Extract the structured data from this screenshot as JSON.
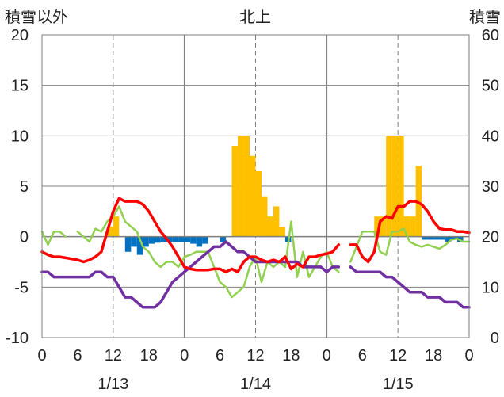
{
  "chart_data": {
    "type": "bar+line",
    "title": "北上",
    "ylabel_left": "積雪以外",
    "ylabel_right": "積雪",
    "ylim_left": [
      -10,
      20
    ],
    "yticks_left": [
      "20",
      "15",
      "10",
      "5",
      "0",
      "-5",
      "-10"
    ],
    "ylim_right": [
      0,
      60
    ],
    "yticks_right": [
      "60",
      "50",
      "40",
      "30",
      "20",
      "10",
      "0"
    ],
    "xlim_hours": [
      0,
      72
    ],
    "xticks": [
      "0",
      "6",
      "12",
      "18",
      "0",
      "6",
      "12",
      "18",
      "0",
      "6",
      "12",
      "18",
      "0"
    ],
    "date_labels": [
      "1/13",
      "1/14",
      "1/15"
    ],
    "grid": true,
    "colors": {
      "snow_depth": "#FFC000",
      "snow_change": "#0070C0",
      "red_line": "#FF0000",
      "green_line": "#92D050",
      "purple_line": "#7030A0",
      "grid": "#808080"
    },
    "series": [
      {
        "key": "snow_depth_bars",
        "axis": "right",
        "color": "#FFC000",
        "points": [
          [
            12,
            22
          ],
          [
            13,
            24
          ],
          [
            33,
            38
          ],
          [
            34,
            40
          ],
          [
            35,
            40
          ],
          [
            36,
            36
          ],
          [
            37,
            33
          ],
          [
            38,
            28
          ],
          [
            39,
            24
          ],
          [
            40,
            26
          ],
          [
            41,
            22
          ],
          [
            57,
            24
          ],
          [
            58,
            24
          ],
          [
            59,
            40
          ],
          [
            60,
            40
          ],
          [
            61,
            40
          ],
          [
            62,
            24
          ],
          [
            63,
            24
          ],
          [
            64,
            34
          ]
        ]
      },
      {
        "key": "snow_change_bars",
        "axis": "left",
        "color": "#0070C0",
        "points": [
          [
            15,
            -1.5
          ],
          [
            16,
            -1
          ],
          [
            17,
            -1.8
          ],
          [
            18,
            -1
          ],
          [
            19,
            -0.7
          ],
          [
            20,
            -0.6
          ],
          [
            21,
            -0.5
          ],
          [
            22,
            -0.5
          ],
          [
            23,
            -0.5
          ],
          [
            24,
            -0.5
          ],
          [
            25,
            -0.5
          ],
          [
            26,
            -0.7
          ],
          [
            27,
            -1
          ],
          [
            28,
            -0.7
          ],
          [
            31,
            -0.5
          ],
          [
            42,
            -0.5
          ],
          [
            65,
            -0.3
          ],
          [
            66,
            -0.3
          ],
          [
            67,
            -0.3
          ],
          [
            68,
            -0.3
          ],
          [
            69,
            -0.5
          ],
          [
            70,
            -0.3
          ],
          [
            71,
            -0.5
          ]
        ]
      },
      {
        "key": "red_line",
        "axis": "left",
        "color": "#FF0000",
        "segments": [
          [
            [
              0,
              -1.5
            ],
            [
              1,
              -1.8
            ],
            [
              2,
              -2
            ],
            [
              3,
              -2
            ],
            [
              4,
              -2.1
            ],
            [
              5,
              -2.2
            ],
            [
              6,
              -2.3
            ],
            [
              7,
              -2.5
            ],
            [
              8,
              -2.3
            ],
            [
              9,
              -2
            ],
            [
              10,
              -1.5
            ],
            [
              11,
              0.5
            ],
            [
              12,
              2.5
            ],
            [
              13,
              3.8
            ],
            [
              14,
              3.5
            ],
            [
              15,
              3.5
            ],
            [
              16,
              3.5
            ],
            [
              17,
              3.2
            ],
            [
              18,
              2.5
            ],
            [
              19,
              1.5
            ],
            [
              20,
              0.5
            ],
            [
              21,
              -0.2
            ],
            [
              22,
              -1
            ],
            [
              23,
              -2
            ],
            [
              24,
              -3
            ],
            [
              25,
              -3.2
            ],
            [
              26,
              -3.3
            ],
            [
              27,
              -3.3
            ],
            [
              28,
              -3.3
            ],
            [
              29,
              -3.2
            ],
            [
              30,
              -3.2
            ],
            [
              31,
              -3.5
            ],
            [
              32,
              -3.2
            ],
            [
              33,
              -3.5
            ],
            [
              34,
              -2.5
            ],
            [
              35,
              -2
            ],
            [
              36,
              -2
            ],
            [
              37,
              -2.3
            ],
            [
              38,
              -2.5
            ],
            [
              39,
              -2.3
            ],
            [
              40,
              -2.5
            ],
            [
              41,
              -2
            ],
            [
              42,
              -3.2
            ],
            [
              43,
              -2.7
            ],
            [
              44,
              -3
            ],
            [
              45,
              -2
            ],
            [
              46,
              -2
            ],
            [
              47,
              -1.8
            ],
            [
              48,
              -1.7
            ],
            [
              49,
              -1.5
            ],
            [
              50,
              -0.8
            ]
          ],
          [
            [
              52,
              -0.8
            ],
            [
              53,
              -0.8
            ],
            [
              54,
              -2
            ],
            [
              55,
              -2.5
            ],
            [
              56,
              -1.5
            ],
            [
              57,
              1.5
            ],
            [
              58,
              2
            ],
            [
              59,
              1.8
            ],
            [
              60,
              3
            ],
            [
              61,
              3
            ],
            [
              62,
              3.5
            ],
            [
              63,
              3.5
            ],
            [
              64,
              3.2
            ],
            [
              65,
              2.5
            ],
            [
              66,
              1.5
            ],
            [
              67,
              0.8
            ],
            [
              68,
              0.7
            ],
            [
              69,
              0.7
            ],
            [
              70,
              0.5
            ],
            [
              71,
              0.5
            ],
            [
              72,
              0.4
            ]
          ]
        ]
      },
      {
        "key": "green_line",
        "axis": "left",
        "color": "#92D050",
        "segments": [
          [
            [
              0,
              0.5
            ],
            [
              1,
              -0.8
            ],
            [
              2,
              0.5
            ],
            [
              3,
              0.5
            ],
            [
              4,
              0
            ]
          ],
          [
            [
              6,
              0.5
            ],
            [
              7,
              0
            ],
            [
              8,
              -0.5
            ],
            [
              9,
              0.8
            ],
            [
              10,
              0.5
            ],
            [
              11,
              1.5
            ],
            [
              12,
              2
            ],
            [
              13,
              3
            ],
            [
              14,
              1.5
            ],
            [
              15,
              1
            ],
            [
              16,
              0.5
            ],
            [
              17,
              -1
            ],
            [
              18,
              -1.5
            ],
            [
              19,
              -2.5
            ],
            [
              20,
              -3
            ],
            [
              21,
              -2.5
            ],
            [
              22,
              -2.5
            ],
            [
              23,
              -3
            ],
            [
              24,
              -2
            ],
            [
              25,
              -1.8
            ],
            [
              26,
              -1.5
            ],
            [
              27,
              -1.5
            ],
            [
              28,
              -1.5
            ],
            [
              29,
              -3
            ],
            [
              30,
              -4.5
            ],
            [
              31,
              -5
            ],
            [
              32,
              -6
            ],
            [
              33,
              -5.5
            ],
            [
              34,
              -5
            ],
            [
              35,
              -3
            ],
            [
              36,
              -2
            ],
            [
              37,
              -4.5
            ],
            [
              38,
              -2.5
            ],
            [
              39,
              -3
            ],
            [
              40,
              -2.5
            ],
            [
              41,
              -3
            ],
            [
              42,
              1.5
            ],
            [
              43,
              -4
            ],
            [
              44,
              -1.5
            ],
            [
              45,
              -4
            ],
            [
              46,
              -3
            ],
            [
              47,
              -2
            ],
            [
              48,
              -1.5
            ],
            [
              49,
              -3
            ],
            [
              50,
              -3.5
            ]
          ],
          [
            [
              52,
              -2.5
            ],
            [
              53,
              -1
            ],
            [
              54,
              0.5
            ],
            [
              55,
              0.5
            ],
            [
              56,
              0.5
            ],
            [
              57,
              -1.5
            ],
            [
              58,
              -1.8
            ],
            [
              59,
              0.5
            ],
            [
              60,
              0.5
            ],
            [
              61,
              0.8
            ],
            [
              62,
              -0.5
            ],
            [
              63,
              -0.8
            ],
            [
              64,
              -1
            ],
            [
              65,
              -0.8
            ],
            [
              66,
              -1
            ],
            [
              67,
              -1.2
            ],
            [
              68,
              -0.8
            ],
            [
              69,
              -0.3
            ],
            [
              70,
              -0.2
            ],
            [
              71,
              -0.5
            ],
            [
              72,
              -0.5
            ]
          ]
        ]
      },
      {
        "key": "purple_line",
        "axis": "left",
        "color": "#7030A0",
        "segments": [
          [
            [
              0,
              -3.5
            ],
            [
              1,
              -3.5
            ],
            [
              2,
              -4
            ],
            [
              3,
              -4
            ],
            [
              4,
              -4
            ],
            [
              5,
              -4
            ],
            [
              6,
              -4
            ],
            [
              7,
              -4
            ],
            [
              8,
              -4
            ],
            [
              9,
              -3.5
            ],
            [
              10,
              -3.5
            ],
            [
              11,
              -4
            ],
            [
              12,
              -4
            ],
            [
              13,
              -5
            ],
            [
              14,
              -6
            ],
            [
              15,
              -6
            ],
            [
              16,
              -6.5
            ],
            [
              17,
              -7
            ],
            [
              18,
              -7
            ],
            [
              19,
              -7
            ],
            [
              20,
              -6.5
            ],
            [
              21,
              -5.5
            ],
            [
              22,
              -4.5
            ],
            [
              23,
              -4
            ],
            [
              24,
              -3.5
            ],
            [
              25,
              -3
            ],
            [
              26,
              -2.5
            ],
            [
              27,
              -2
            ],
            [
              28,
              -1.5
            ],
            [
              29,
              -1
            ],
            [
              30,
              -1
            ],
            [
              31,
              -0.5
            ],
            [
              32,
              -1
            ],
            [
              33,
              -1.5
            ],
            [
              34,
              -1.5
            ],
            [
              35,
              -2
            ],
            [
              36,
              -2.5
            ],
            [
              37,
              -2.5
            ],
            [
              38,
              -2.5
            ],
            [
              39,
              -2.5
            ],
            [
              40,
              -2.5
            ],
            [
              41,
              -2.5
            ],
            [
              42,
              -2.5
            ],
            [
              43,
              -2.5
            ],
            [
              44,
              -3
            ],
            [
              45,
              -3
            ],
            [
              46,
              -3
            ],
            [
              47,
              -3
            ],
            [
              48,
              -3.5
            ],
            [
              49,
              -3
            ],
            [
              50,
              -3
            ]
          ],
          [
            [
              52,
              -3
            ],
            [
              53,
              -3.5
            ],
            [
              54,
              -3.5
            ],
            [
              55,
              -3.5
            ],
            [
              56,
              -3.5
            ],
            [
              57,
              -3.5
            ],
            [
              58,
              -4
            ],
            [
              59,
              -4
            ],
            [
              60,
              -4.5
            ],
            [
              61,
              -5
            ],
            [
              62,
              -5.5
            ],
            [
              63,
              -5.5
            ],
            [
              64,
              -5.5
            ],
            [
              65,
              -6
            ],
            [
              66,
              -6
            ],
            [
              67,
              -6
            ],
            [
              68,
              -6.5
            ],
            [
              69,
              -6.5
            ],
            [
              70,
              -6.5
            ],
            [
              71,
              -7
            ],
            [
              72,
              -7
            ]
          ]
        ]
      }
    ]
  }
}
